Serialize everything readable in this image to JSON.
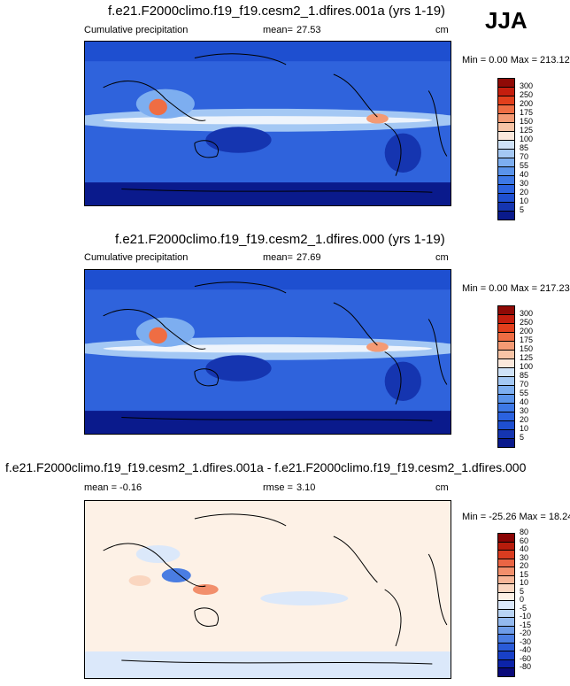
{
  "season": "JJA",
  "chart_data": [
    {
      "type": "heatmap",
      "title": "f.e21.F2000climo.f19_f19.cesm2_1.dfires.001a (yrs 1-19)",
      "left_label": "Cumulative precipitation",
      "stat_label": "mean=",
      "stat_value": "27.53",
      "units": "cm",
      "minmax": "Min =   0.00 Max = 213.12",
      "colorbar": {
        "labels": [
          "5",
          "10",
          "20",
          "30",
          "40",
          "55",
          "70",
          "85",
          "100",
          "125",
          "150",
          "175",
          "200",
          "250",
          "300"
        ],
        "colors": [
          "#0a1a8c",
          "#1535b0",
          "#1e4fd0",
          "#2b62df",
          "#3d78e6",
          "#5a93ea",
          "#7daef0",
          "#a4c8f4",
          "#cfe2f8",
          "#fbe8dc",
          "#f7c4a6",
          "#f49a74",
          "#ef6d43",
          "#e23f1c",
          "#c41e0e",
          "#8f0a06"
        ]
      }
    },
    {
      "type": "heatmap",
      "title": "f.e21.F2000climo.f19_f19.cesm2_1.dfires.000 (yrs 1-19)",
      "left_label": "Cumulative precipitation",
      "stat_label": "mean=",
      "stat_value": "27.69",
      "units": "cm",
      "minmax": "Min =   0.00 Max = 217.23",
      "colorbar": {
        "labels": [
          "5",
          "10",
          "20",
          "30",
          "40",
          "55",
          "70",
          "85",
          "100",
          "125",
          "150",
          "175",
          "200",
          "250",
          "300"
        ],
        "colors": [
          "#0a1a8c",
          "#1535b0",
          "#1e4fd0",
          "#2b62df",
          "#3d78e6",
          "#5a93ea",
          "#7daef0",
          "#a4c8f4",
          "#cfe2f8",
          "#fbe8dc",
          "#f7c4a6",
          "#f49a74",
          "#ef6d43",
          "#e23f1c",
          "#c41e0e",
          "#8f0a06"
        ]
      }
    },
    {
      "type": "heatmap",
      "title": "f.e21.F2000climo.f19_f19.cesm2_1.dfires.001a - f.e21.F2000climo.f19_f19.cesm2_1.dfires.000",
      "left_label": "mean =  -0.16",
      "stat_label": "rmse =",
      "stat_value": "3.10",
      "units": "cm",
      "minmax": "Min = -25.26 Max = 18.24",
      "colorbar": {
        "labels": [
          "-80",
          "-60",
          "-40",
          "-30",
          "-20",
          "-15",
          "-10",
          "-5",
          "0",
          "5",
          "10",
          "15",
          "20",
          "30",
          "40",
          "60",
          "80"
        ],
        "colors": [
          "#0a0a7a",
          "#0c23a8",
          "#1840c8",
          "#2a5bd8",
          "#4a7de2",
          "#6e9ce8",
          "#93b9ef",
          "#b9d4f5",
          "#dbe8fa",
          "#fdf1e6",
          "#fad6c0",
          "#f7b698",
          "#f28f6c",
          "#ea6544",
          "#d93c20",
          "#b71c0c",
          "#8a0404"
        ]
      }
    }
  ]
}
